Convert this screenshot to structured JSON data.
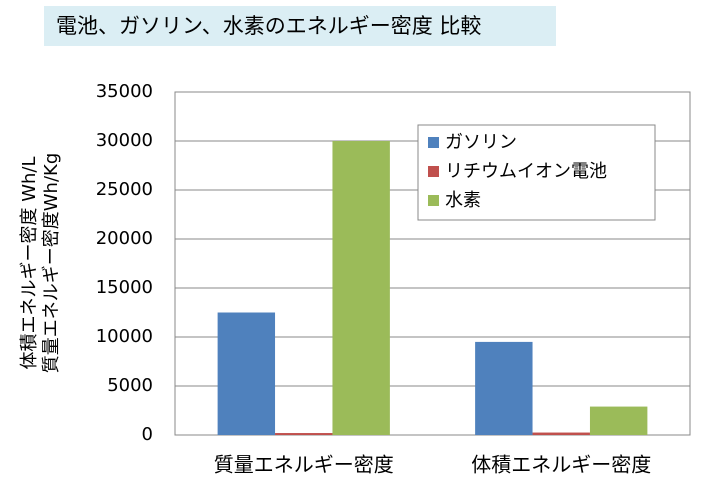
{
  "chart_data": {
    "type": "bar",
    "title": "電池、ガソリン、水素のエネルギー密度 比較",
    "ylabel": [
      "体積エネルギー密度 Wh/L",
      "質量エネルギー密度Wh/Kg"
    ],
    "categories": [
      "質量エネルギー密度",
      "体積エネルギー密度"
    ],
    "series": [
      {
        "name": "ガソリン",
        "color": "#4f81bd",
        "values": [
          12500,
          9500
        ]
      },
      {
        "name": "リチウムイオン電池",
        "color": "#c0504d",
        "values": [
          200,
          250
        ]
      },
      {
        "name": "水素",
        "color": "#9bbb59",
        "values": [
          30000,
          2900
        ]
      }
    ],
    "ylim": [
      0,
      35000
    ],
    "yticks": [
      0,
      5000,
      10000,
      15000,
      20000,
      25000,
      30000,
      35000
    ],
    "grid": true,
    "legend": "upper right"
  }
}
